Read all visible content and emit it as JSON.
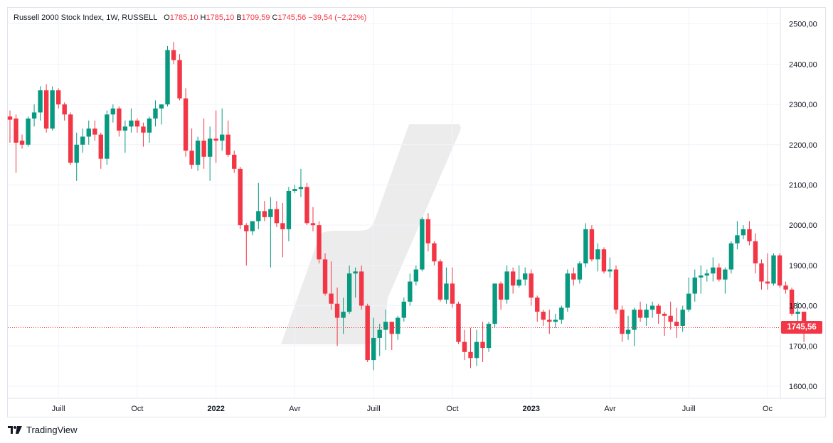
{
  "header": {
    "symbol": "Russell 2000 Stock Index, 1W, RUSSELL",
    "open_label": "O",
    "open": "1785,10",
    "high_label": "H",
    "high": "1785,10",
    "low_label": "B",
    "low": "1709,59",
    "close_label": "C",
    "close": "1745,56",
    "change": "−39,54 (−2,22%)"
  },
  "footer": {
    "brand": "TradingView",
    "logo_icon": "tradingview-logo-icon"
  },
  "colors": {
    "up": "#089981",
    "down": "#f23645",
    "grid": "#f0f3fa",
    "axis_text": "#131722"
  },
  "chart_data": {
    "type": "candlestick",
    "y_ticks": [
      "1600,00",
      "1700,00",
      "1800,00",
      "1900,00",
      "2000,00",
      "2100,00",
      "2200,00",
      "2300,00",
      "2400,00",
      "2500,00"
    ],
    "y_tick_values": [
      1600,
      1700,
      1800,
      1900,
      2000,
      2100,
      2200,
      2300,
      2400,
      2500
    ],
    "x_ticks": [
      {
        "label": "Juill",
        "i": 8
      },
      {
        "label": "Oct",
        "i": 21
      },
      {
        "label": "2022",
        "i": 34,
        "bold": true
      },
      {
        "label": "Avr",
        "i": 47
      },
      {
        "label": "Juill",
        "i": 60
      },
      {
        "label": "Oct",
        "i": 73
      },
      {
        "label": "2023",
        "i": 86,
        "bold": true
      },
      {
        "label": "Avr",
        "i": 99
      },
      {
        "label": "Juill",
        "i": 112
      },
      {
        "label": "Oc",
        "i": 125
      }
    ],
    "ylim": [
      1570,
      2540
    ],
    "last_price": "1745,56",
    "last_value": 1745.56,
    "grid": true,
    "candles": [
      [
        2270,
        2285,
        2205,
        2262
      ],
      [
        2265,
        2275,
        2130,
        2205
      ],
      [
        2210,
        2225,
        2190,
        2200
      ],
      [
        2200,
        2270,
        2195,
        2265
      ],
      [
        2265,
        2300,
        2245,
        2280
      ],
      [
        2280,
        2345,
        2260,
        2335
      ],
      [
        2335,
        2350,
        2230,
        2240
      ],
      [
        2240,
        2345,
        2235,
        2335
      ],
      [
        2335,
        2340,
        2290,
        2300
      ],
      [
        2300,
        2305,
        2260,
        2275
      ],
      [
        2275,
        2280,
        2150,
        2155
      ],
      [
        2155,
        2230,
        2110,
        2200
      ],
      [
        2200,
        2240,
        2180,
        2220
      ],
      [
        2220,
        2260,
        2200,
        2240
      ],
      [
        2240,
        2260,
        2210,
        2225
      ],
      [
        2225,
        2230,
        2140,
        2165
      ],
      [
        2165,
        2285,
        2150,
        2275
      ],
      [
        2275,
        2300,
        2255,
        2290
      ],
      [
        2290,
        2295,
        2220,
        2235
      ],
      [
        2235,
        2260,
        2180,
        2245
      ],
      [
        2245,
        2290,
        2230,
        2260
      ],
      [
        2260,
        2265,
        2230,
        2245
      ],
      [
        2245,
        2255,
        2195,
        2230
      ],
      [
        2230,
        2270,
        2205,
        2265
      ],
      [
        2265,
        2310,
        2245,
        2290
      ],
      [
        2290,
        2300,
        2250,
        2300
      ],
      [
        2300,
        2445,
        2295,
        2435
      ],
      [
        2435,
        2455,
        2400,
        2410
      ],
      [
        2410,
        2425,
        2310,
        2315
      ],
      [
        2315,
        2340,
        2170,
        2185
      ],
      [
        2185,
        2240,
        2140,
        2150
      ],
      [
        2150,
        2220,
        2135,
        2210
      ],
      [
        2210,
        2265,
        2140,
        2170
      ],
      [
        2170,
        2245,
        2110,
        2215
      ],
      [
        2215,
        2285,
        2155,
        2210
      ],
      [
        2210,
        2290,
        2185,
        2225
      ],
      [
        2225,
        2260,
        2170,
        2175
      ],
      [
        2175,
        2185,
        2130,
        2140
      ],
      [
        2140,
        2145,
        1990,
        2000
      ],
      [
        2000,
        2005,
        1900,
        1985
      ],
      [
        1985,
        2010,
        1975,
        2010
      ],
      [
        2010,
        2105,
        1990,
        2035
      ],
      [
        2035,
        2060,
        2010,
        2020
      ],
      [
        2020,
        2070,
        1895,
        2040
      ],
      [
        2040,
        2060,
        1995,
        2005
      ],
      [
        2005,
        2055,
        1920,
        1990
      ],
      [
        1990,
        2095,
        1960,
        2085
      ],
      [
        2085,
        2100,
        2080,
        2090
      ],
      [
        2090,
        2140,
        2070,
        2095
      ],
      [
        2095,
        2105,
        2000,
        2005
      ],
      [
        2005,
        2045,
        1985,
        2000
      ],
      [
        2000,
        2010,
        1905,
        1915
      ],
      [
        1915,
        1930,
        1825,
        1830
      ],
      [
        1830,
        1910,
        1790,
        1805
      ],
      [
        1805,
        1845,
        1700,
        1770
      ],
      [
        1770,
        1820,
        1730,
        1785
      ],
      [
        1785,
        1900,
        1780,
        1880
      ],
      [
        1880,
        1895,
        1820,
        1885
      ],
      [
        1885,
        1900,
        1790,
        1800
      ],
      [
        1800,
        1805,
        1660,
        1665
      ],
      [
        1665,
        1770,
        1640,
        1720
      ],
      [
        1720,
        1755,
        1675,
        1740
      ],
      [
        1740,
        1790,
        1690,
        1760
      ],
      [
        1760,
        1760,
        1690,
        1730
      ],
      [
        1730,
        1775,
        1715,
        1770
      ],
      [
        1770,
        1820,
        1760,
        1810
      ],
      [
        1810,
        1880,
        1800,
        1860
      ],
      [
        1860,
        1900,
        1850,
        1890
      ],
      [
        1890,
        2020,
        1885,
        2015
      ],
      [
        2015,
        2030,
        1935,
        1955
      ],
      [
        1955,
        1960,
        1900,
        1910
      ],
      [
        1910,
        1915,
        1810,
        1815
      ],
      [
        1815,
        1895,
        1805,
        1855
      ],
      [
        1855,
        1895,
        1795,
        1805
      ],
      [
        1805,
        1810,
        1705,
        1710
      ],
      [
        1710,
        1740,
        1665,
        1685
      ],
      [
        1685,
        1745,
        1645,
        1670
      ],
      [
        1670,
        1740,
        1650,
        1710
      ],
      [
        1710,
        1760,
        1660,
        1695
      ],
      [
        1695,
        1760,
        1685,
        1755
      ],
      [
        1755,
        1850,
        1745,
        1855
      ],
      [
        1855,
        1860,
        1790,
        1815
      ],
      [
        1815,
        1900,
        1805,
        1885
      ],
      [
        1885,
        1895,
        1830,
        1850
      ],
      [
        1850,
        1900,
        1845,
        1865
      ],
      [
        1865,
        1895,
        1850,
        1880
      ],
      [
        1880,
        1890,
        1800,
        1820
      ],
      [
        1820,
        1825,
        1760,
        1785
      ],
      [
        1785,
        1790,
        1750,
        1765
      ],
      [
        1765,
        1790,
        1730,
        1760
      ],
      [
        1760,
        1780,
        1745,
        1765
      ],
      [
        1765,
        1800,
        1755,
        1795
      ],
      [
        1795,
        1890,
        1785,
        1880
      ],
      [
        1880,
        1895,
        1850,
        1865
      ],
      [
        1865,
        1910,
        1855,
        1905
      ],
      [
        1905,
        2005,
        1895,
        1990
      ],
      [
        1990,
        2000,
        1910,
        1915
      ],
      [
        1915,
        1955,
        1885,
        1940
      ],
      [
        1940,
        1945,
        1880,
        1885
      ],
      [
        1885,
        1920,
        1870,
        1890
      ],
      [
        1890,
        1900,
        1780,
        1790
      ],
      [
        1790,
        1800,
        1710,
        1730
      ],
      [
        1730,
        1775,
        1715,
        1740
      ],
      [
        1740,
        1795,
        1700,
        1790
      ],
      [
        1790,
        1810,
        1760,
        1770
      ],
      [
        1770,
        1805,
        1750,
        1790
      ],
      [
        1790,
        1810,
        1770,
        1800
      ],
      [
        1800,
        1805,
        1755,
        1780
      ],
      [
        1780,
        1785,
        1725,
        1775
      ],
      [
        1775,
        1810,
        1740,
        1760
      ],
      [
        1760,
        1795,
        1720,
        1750
      ],
      [
        1750,
        1800,
        1735,
        1790
      ],
      [
        1790,
        1870,
        1785,
        1830
      ],
      [
        1830,
        1890,
        1810,
        1870
      ],
      [
        1870,
        1900,
        1830,
        1875
      ],
      [
        1875,
        1890,
        1860,
        1880
      ],
      [
        1880,
        1920,
        1860,
        1895
      ],
      [
        1895,
        1905,
        1860,
        1865
      ],
      [
        1865,
        1895,
        1830,
        1890
      ],
      [
        1890,
        1960,
        1880,
        1955
      ],
      [
        1955,
        2010,
        1940,
        1975
      ],
      [
        1975,
        2000,
        1965,
        1990
      ],
      [
        1990,
        2010,
        1950,
        1960
      ],
      [
        1960,
        1980,
        1880,
        1905
      ],
      [
        1905,
        1915,
        1840,
        1860
      ],
      [
        1860,
        1930,
        1840,
        1855
      ],
      [
        1855,
        1930,
        1850,
        1925
      ],
      [
        1925,
        1930,
        1845,
        1850
      ],
      [
        1850,
        1860,
        1830,
        1840
      ],
      [
        1840,
        1845,
        1775,
        1780
      ],
      [
        1780,
        1810,
        1755,
        1785
      ],
      [
        1785,
        1785,
        1710,
        1746
      ]
    ]
  }
}
